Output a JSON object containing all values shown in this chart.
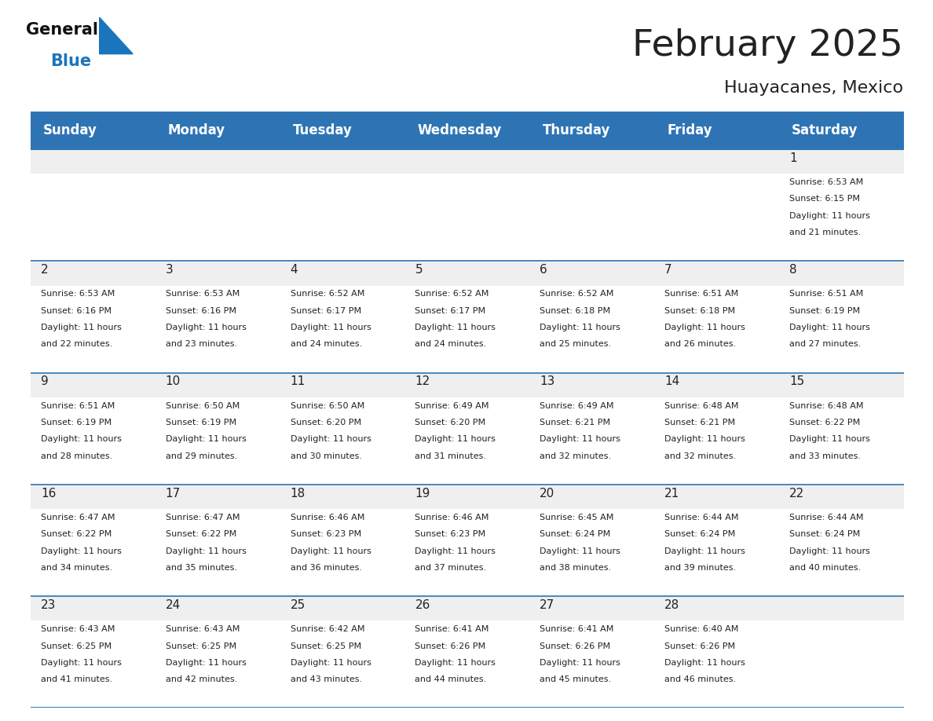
{
  "title": "February 2025",
  "subtitle": "Huayacanes, Mexico",
  "header_bg": "#2E74B5",
  "header_text_color": "#FFFFFF",
  "cell_bg_gray": "#EFEFEF",
  "cell_bg_white": "#FFFFFF",
  "day_headers": [
    "Sunday",
    "Monday",
    "Tuesday",
    "Wednesday",
    "Thursday",
    "Friday",
    "Saturday"
  ],
  "days": [
    {
      "day": 1,
      "col": 6,
      "row": 0,
      "sunrise": "6:53 AM",
      "sunset": "6:15 PM",
      "daylight_hours": 11,
      "daylight_minutes": 21
    },
    {
      "day": 2,
      "col": 0,
      "row": 1,
      "sunrise": "6:53 AM",
      "sunset": "6:16 PM",
      "daylight_hours": 11,
      "daylight_minutes": 22
    },
    {
      "day": 3,
      "col": 1,
      "row": 1,
      "sunrise": "6:53 AM",
      "sunset": "6:16 PM",
      "daylight_hours": 11,
      "daylight_minutes": 23
    },
    {
      "day": 4,
      "col": 2,
      "row": 1,
      "sunrise": "6:52 AM",
      "sunset": "6:17 PM",
      "daylight_hours": 11,
      "daylight_minutes": 24
    },
    {
      "day": 5,
      "col": 3,
      "row": 1,
      "sunrise": "6:52 AM",
      "sunset": "6:17 PM",
      "daylight_hours": 11,
      "daylight_minutes": 24
    },
    {
      "day": 6,
      "col": 4,
      "row": 1,
      "sunrise": "6:52 AM",
      "sunset": "6:18 PM",
      "daylight_hours": 11,
      "daylight_minutes": 25
    },
    {
      "day": 7,
      "col": 5,
      "row": 1,
      "sunrise": "6:51 AM",
      "sunset": "6:18 PM",
      "daylight_hours": 11,
      "daylight_minutes": 26
    },
    {
      "day": 8,
      "col": 6,
      "row": 1,
      "sunrise": "6:51 AM",
      "sunset": "6:19 PM",
      "daylight_hours": 11,
      "daylight_minutes": 27
    },
    {
      "day": 9,
      "col": 0,
      "row": 2,
      "sunrise": "6:51 AM",
      "sunset": "6:19 PM",
      "daylight_hours": 11,
      "daylight_minutes": 28
    },
    {
      "day": 10,
      "col": 1,
      "row": 2,
      "sunrise": "6:50 AM",
      "sunset": "6:19 PM",
      "daylight_hours": 11,
      "daylight_minutes": 29
    },
    {
      "day": 11,
      "col": 2,
      "row": 2,
      "sunrise": "6:50 AM",
      "sunset": "6:20 PM",
      "daylight_hours": 11,
      "daylight_minutes": 30
    },
    {
      "day": 12,
      "col": 3,
      "row": 2,
      "sunrise": "6:49 AM",
      "sunset": "6:20 PM",
      "daylight_hours": 11,
      "daylight_minutes": 31
    },
    {
      "day": 13,
      "col": 4,
      "row": 2,
      "sunrise": "6:49 AM",
      "sunset": "6:21 PM",
      "daylight_hours": 11,
      "daylight_minutes": 32
    },
    {
      "day": 14,
      "col": 5,
      "row": 2,
      "sunrise": "6:48 AM",
      "sunset": "6:21 PM",
      "daylight_hours": 11,
      "daylight_minutes": 32
    },
    {
      "day": 15,
      "col": 6,
      "row": 2,
      "sunrise": "6:48 AM",
      "sunset": "6:22 PM",
      "daylight_hours": 11,
      "daylight_minutes": 33
    },
    {
      "day": 16,
      "col": 0,
      "row": 3,
      "sunrise": "6:47 AM",
      "sunset": "6:22 PM",
      "daylight_hours": 11,
      "daylight_minutes": 34
    },
    {
      "day": 17,
      "col": 1,
      "row": 3,
      "sunrise": "6:47 AM",
      "sunset": "6:22 PM",
      "daylight_hours": 11,
      "daylight_minutes": 35
    },
    {
      "day": 18,
      "col": 2,
      "row": 3,
      "sunrise": "6:46 AM",
      "sunset": "6:23 PM",
      "daylight_hours": 11,
      "daylight_minutes": 36
    },
    {
      "day": 19,
      "col": 3,
      "row": 3,
      "sunrise": "6:46 AM",
      "sunset": "6:23 PM",
      "daylight_hours": 11,
      "daylight_minutes": 37
    },
    {
      "day": 20,
      "col": 4,
      "row": 3,
      "sunrise": "6:45 AM",
      "sunset": "6:24 PM",
      "daylight_hours": 11,
      "daylight_minutes": 38
    },
    {
      "day": 21,
      "col": 5,
      "row": 3,
      "sunrise": "6:44 AM",
      "sunset": "6:24 PM",
      "daylight_hours": 11,
      "daylight_minutes": 39
    },
    {
      "day": 22,
      "col": 6,
      "row": 3,
      "sunrise": "6:44 AM",
      "sunset": "6:24 PM",
      "daylight_hours": 11,
      "daylight_minutes": 40
    },
    {
      "day": 23,
      "col": 0,
      "row": 4,
      "sunrise": "6:43 AM",
      "sunset": "6:25 PM",
      "daylight_hours": 11,
      "daylight_minutes": 41
    },
    {
      "day": 24,
      "col": 1,
      "row": 4,
      "sunrise": "6:43 AM",
      "sunset": "6:25 PM",
      "daylight_hours": 11,
      "daylight_minutes": 42
    },
    {
      "day": 25,
      "col": 2,
      "row": 4,
      "sunrise": "6:42 AM",
      "sunset": "6:25 PM",
      "daylight_hours": 11,
      "daylight_minutes": 43
    },
    {
      "day": 26,
      "col": 3,
      "row": 4,
      "sunrise": "6:41 AM",
      "sunset": "6:26 PM",
      "daylight_hours": 11,
      "daylight_minutes": 44
    },
    {
      "day": 27,
      "col": 4,
      "row": 4,
      "sunrise": "6:41 AM",
      "sunset": "6:26 PM",
      "daylight_hours": 11,
      "daylight_minutes": 45
    },
    {
      "day": 28,
      "col": 5,
      "row": 4,
      "sunrise": "6:40 AM",
      "sunset": "6:26 PM",
      "daylight_hours": 11,
      "daylight_minutes": 46
    }
  ],
  "num_rows": 5,
  "num_cols": 7,
  "title_fontsize": 34,
  "subtitle_fontsize": 16,
  "header_fontsize": 12,
  "day_num_fontsize": 11,
  "info_fontsize": 8.0,
  "line_color": "#2E74B5",
  "text_color_dark": "#222222",
  "logo_general_color": "#111111",
  "logo_blue_color": "#1B75BC"
}
